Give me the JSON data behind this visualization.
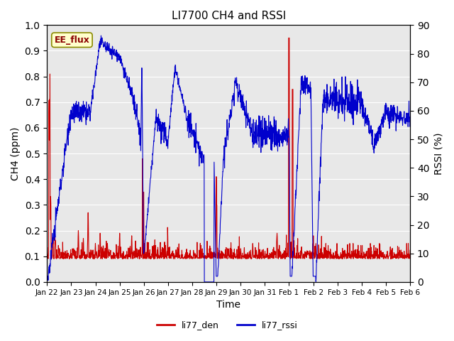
{
  "title": "LI7700 CH4 and RSSI",
  "xlabel": "Time",
  "ylabel_left": "CH4 (ppm)",
  "ylabel_right": "RSSI (%)",
  "annotation": "EE_flux",
  "legend": [
    "li77_den",
    "li77_rssi"
  ],
  "ylim_left": [
    0.0,
    1.0
  ],
  "ylim_right": [
    0,
    90
  ],
  "bg_color": "#e8e8e8",
  "line_color_red": "#cc0000",
  "line_color_blue": "#0000cc",
  "tick_labels": [
    "Jan 22",
    "Jan 23",
    "Jan 24",
    "Jan 25",
    "Jan 26",
    "Jan 27",
    "Jan 28",
    "Jan 29",
    "Jan 30",
    "Jan 31",
    "Feb 1",
    "Feb 2",
    "Feb 3",
    "Feb 4",
    "Feb 5",
    "Feb 6"
  ],
  "n_points": 1600
}
